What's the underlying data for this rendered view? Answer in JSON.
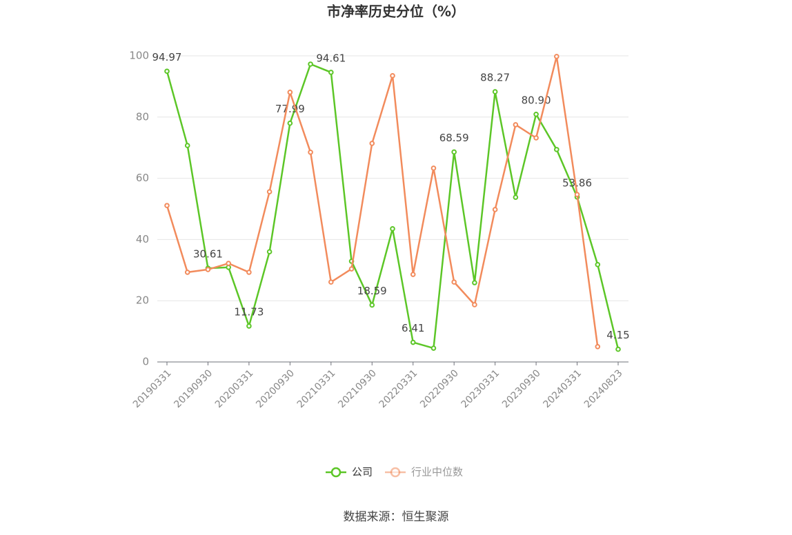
{
  "chart_data": {
    "type": "line",
    "title": "市净率历史分位（%）",
    "categories": [
      "20190331",
      null,
      "20190930",
      null,
      "20200331",
      null,
      "20200930",
      null,
      "20210331",
      null,
      "20210930",
      null,
      "20220331",
      null,
      "20220930",
      null,
      "20230331",
      null,
      "20230930",
      null,
      "20240331",
      null,
      "20240823"
    ],
    "series": [
      {
        "name": "公司",
        "color": "#5cc627",
        "values": [
          94.97,
          70.7,
          30.61,
          30.9,
          11.73,
          36.0,
          77.99,
          97.3,
          94.61,
          32.9,
          18.59,
          43.5,
          6.41,
          4.5,
          68.59,
          25.9,
          88.27,
          53.8,
          80.9,
          69.4,
          53.86,
          31.8,
          4.15
        ],
        "value_labels": [
          "94.97",
          null,
          "30.61",
          null,
          "11.73",
          null,
          "77.99",
          null,
          "94.61",
          null,
          "18.59",
          null,
          "6.41",
          null,
          "68.59",
          null,
          "88.27",
          null,
          "80.90",
          null,
          "53.86",
          null,
          "4.15"
        ]
      },
      {
        "name": "行业中位数",
        "color": "#f28b5c",
        "values": [
          51.1,
          29.3,
          30.2,
          32.2,
          29.3,
          55.6,
          88.1,
          68.5,
          26.1,
          30.4,
          71.4,
          93.5,
          28.6,
          63.3,
          26.1,
          18.7,
          49.8,
          77.5,
          73.2,
          99.8,
          54.7,
          5.0,
          null
        ]
      }
    ],
    "ylim": [
      0,
      100
    ],
    "yticks": [
      0,
      20,
      40,
      60,
      80,
      100
    ],
    "grid": true,
    "legend": "bottom",
    "source": "数据来源：恒生聚源"
  }
}
